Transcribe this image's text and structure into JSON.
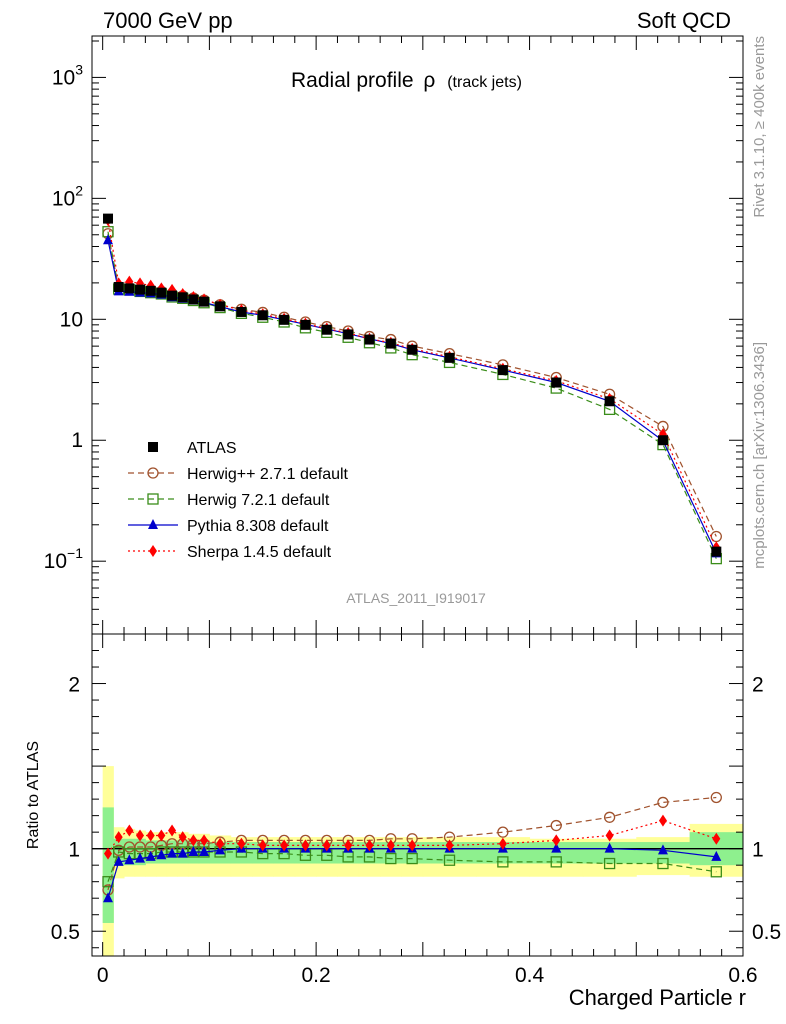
{
  "header": {
    "left": "7000 GeV pp",
    "right": "Soft QCD"
  },
  "side_labels": {
    "top": "Rivet 3.1.10, ≥ 400k events",
    "bottom": "mcplots.cern.ch [arXiv:1306.3436]"
  },
  "colors": {
    "atlas": "#000000",
    "herwigpp": "#a0522d",
    "herwig7": "#3a8d1a",
    "pythia": "#0000cc",
    "sherpa": "#ff0000",
    "band_inner": "#8ef08e",
    "band_outer": "#ffff99"
  },
  "chart_data": [
    {
      "type": "line",
      "panel": "main",
      "title": "Radial profile",
      "title_symbol": "ρ",
      "title_suffix": "(track jets)",
      "watermark": "ATLAS_2011_I919017",
      "yscale": "log",
      "xlim": [
        -0.01,
        0.6
      ],
      "ylim": [
        0.025,
        2200
      ],
      "yticks": [
        {
          "value": 1000,
          "base": "10",
          "exp": "3"
        },
        {
          "value": 100,
          "base": "10",
          "exp": "2"
        },
        {
          "value": 10,
          "base": "10",
          "exp": ""
        },
        {
          "value": 1,
          "base": "1",
          "exp": ""
        },
        {
          "value": 0.1,
          "base": "10",
          "exp": "−1"
        }
      ],
      "x": [
        0.005,
        0.015,
        0.025,
        0.035,
        0.045,
        0.055,
        0.065,
        0.075,
        0.085,
        0.095,
        0.11,
        0.13,
        0.15,
        0.17,
        0.19,
        0.21,
        0.23,
        0.25,
        0.27,
        0.29,
        0.325,
        0.375,
        0.425,
        0.475,
        0.525,
        0.575
      ],
      "series": [
        {
          "name": "ATLAS",
          "key": "atlas",
          "marker": "square-filled",
          "line": "none",
          "values": [
            68,
            18.5,
            18.0,
            17.6,
            17.2,
            16.6,
            15.7,
            15.2,
            14.6,
            14.0,
            12.8,
            11.5,
            10.8,
            9.9,
            9.0,
            8.2,
            7.5,
            6.8,
            6.3,
            5.6,
            4.8,
            3.8,
            3.0,
            2.1,
            1.0,
            0.12
          ]
        },
        {
          "name": "Herwig++ 2.7.1 default",
          "key": "herwigpp",
          "marker": "circle-open",
          "line": "dashed",
          "values": [
            51,
            18.2,
            18.3,
            17.8,
            17.4,
            17.0,
            16.3,
            15.6,
            15.0,
            14.4,
            13.2,
            12.1,
            11.4,
            10.4,
            9.5,
            8.7,
            8.0,
            7.2,
            6.8,
            6.0,
            5.2,
            4.2,
            3.3,
            2.4,
            1.3,
            0.16
          ]
        },
        {
          "name": "Herwig 7.2.1 default",
          "key": "herwig7",
          "marker": "square-open",
          "line": "dashed",
          "values": [
            53,
            17.8,
            17.5,
            17.0,
            16.6,
            16.2,
            15.3,
            14.9,
            14.3,
            13.7,
            12.5,
            11.2,
            10.4,
            9.5,
            8.5,
            7.8,
            7.1,
            6.4,
            5.8,
            5.1,
            4.4,
            3.5,
            2.7,
            1.8,
            0.92,
            0.105
          ]
        },
        {
          "name": "Pythia 8.308 default",
          "key": "pythia",
          "marker": "triangle",
          "line": "solid",
          "values": [
            45,
            17.0,
            16.9,
            16.6,
            16.4,
            16.0,
            15.2,
            14.8,
            14.3,
            13.8,
            12.7,
            11.5,
            10.8,
            9.9,
            9.1,
            8.3,
            7.6,
            6.9,
            6.3,
            5.6,
            4.8,
            3.8,
            3.0,
            2.1,
            0.99,
            0.116
          ]
        },
        {
          "name": "Sherpa 1.4.5 default",
          "key": "sherpa",
          "marker": "diamond",
          "line": "dotted",
          "values": [
            66,
            19.8,
            20.5,
            19.8,
            19.0,
            18.0,
            17.5,
            16.2,
            15.3,
            14.6,
            13.2,
            11.9,
            11.0,
            10.1,
            9.2,
            8.4,
            7.7,
            6.9,
            6.4,
            5.7,
            4.9,
            3.9,
            3.1,
            2.2,
            1.12,
            0.13
          ]
        }
      ],
      "legend_position": "lower-left"
    },
    {
      "type": "line",
      "panel": "ratio",
      "ylabel": "Ratio to ATLAS",
      "xlabel": "Charged Particle r",
      "xlim": [
        -0.01,
        0.6
      ],
      "ylim": [
        0.35,
        2.3
      ],
      "yticks": [
        {
          "value": 2,
          "label": "2"
        },
        {
          "value": 1,
          "label": "1"
        },
        {
          "value": 0.5,
          "label": "0.5"
        }
      ],
      "xticks": [
        {
          "value": 0,
          "label": "0"
        },
        {
          "value": 0.2,
          "label": "0.2"
        },
        {
          "value": 0.4,
          "label": "0.4"
        },
        {
          "value": 0.6,
          "label": "0.6"
        }
      ],
      "bins": [
        0,
        0.01,
        0.02,
        0.03,
        0.04,
        0.05,
        0.06,
        0.07,
        0.08,
        0.09,
        0.1,
        0.12,
        0.14,
        0.16,
        0.18,
        0.2,
        0.22,
        0.24,
        0.26,
        0.28,
        0.3,
        0.35,
        0.4,
        0.45,
        0.5,
        0.55,
        0.6
      ],
      "band_inner": [
        [
          0.55,
          1.25
        ],
        [
          0.9,
          1.06
        ],
        [
          0.9,
          1.06
        ],
        [
          0.9,
          1.06
        ],
        [
          0.91,
          1.05
        ],
        [
          0.91,
          1.05
        ],
        [
          0.91,
          1.05
        ],
        [
          0.91,
          1.05
        ],
        [
          0.91,
          1.05
        ],
        [
          0.91,
          1.05
        ],
        [
          0.91,
          1.04
        ],
        [
          0.91,
          1.04
        ],
        [
          0.91,
          1.04
        ],
        [
          0.91,
          1.04
        ],
        [
          0.91,
          1.04
        ],
        [
          0.91,
          1.04
        ],
        [
          0.91,
          1.04
        ],
        [
          0.91,
          1.04
        ],
        [
          0.91,
          1.04
        ],
        [
          0.91,
          1.04
        ],
        [
          0.91,
          1.04
        ],
        [
          0.91,
          1.04
        ],
        [
          0.91,
          1.04
        ],
        [
          0.91,
          1.04
        ],
        [
          0.91,
          1.04
        ],
        [
          0.9,
          1.1
        ]
      ],
      "band_outer": [
        [
          0.35,
          1.5
        ],
        [
          0.82,
          1.13
        ],
        [
          0.83,
          1.12
        ],
        [
          0.83,
          1.11
        ],
        [
          0.83,
          1.1
        ],
        [
          0.83,
          1.1
        ],
        [
          0.83,
          1.1
        ],
        [
          0.83,
          1.1
        ],
        [
          0.83,
          1.09
        ],
        [
          0.83,
          1.09
        ],
        [
          0.83,
          1.08
        ],
        [
          0.83,
          1.07
        ],
        [
          0.83,
          1.07
        ],
        [
          0.83,
          1.07
        ],
        [
          0.83,
          1.07
        ],
        [
          0.83,
          1.07
        ],
        [
          0.83,
          1.07
        ],
        [
          0.83,
          1.07
        ],
        [
          0.83,
          1.07
        ],
        [
          0.83,
          1.07
        ],
        [
          0.83,
          1.07
        ],
        [
          0.83,
          1.07
        ],
        [
          0.83,
          1.06
        ],
        [
          0.83,
          1.06
        ],
        [
          0.84,
          1.07
        ],
        [
          0.83,
          1.15
        ]
      ],
      "x": [
        0.005,
        0.015,
        0.025,
        0.035,
        0.045,
        0.055,
        0.065,
        0.075,
        0.085,
        0.095,
        0.11,
        0.13,
        0.15,
        0.17,
        0.19,
        0.21,
        0.23,
        0.25,
        0.27,
        0.29,
        0.325,
        0.375,
        0.425,
        0.475,
        0.525,
        0.575
      ],
      "series": [
        {
          "name": "Herwig++ 2.7.1 default",
          "key": "herwigpp",
          "marker": "circle-open",
          "line": "dashed",
          "values": [
            0.75,
            0.99,
            1.01,
            1.01,
            1.01,
            1.02,
            1.03,
            1.03,
            1.03,
            1.03,
            1.04,
            1.05,
            1.05,
            1.05,
            1.05,
            1.05,
            1.05,
            1.05,
            1.06,
            1.06,
            1.07,
            1.1,
            1.14,
            1.19,
            1.28,
            1.31
          ]
        },
        {
          "name": "Herwig 7.2.1 default",
          "key": "herwig7",
          "marker": "square-open",
          "line": "dashed",
          "values": [
            0.8,
            0.98,
            0.97,
            0.97,
            0.97,
            0.98,
            0.98,
            0.98,
            0.98,
            0.98,
            0.98,
            0.98,
            0.97,
            0.97,
            0.96,
            0.96,
            0.95,
            0.95,
            0.94,
            0.94,
            0.93,
            0.92,
            0.92,
            0.91,
            0.91,
            0.86
          ]
        },
        {
          "name": "Pythia 8.308 default",
          "key": "pythia",
          "marker": "triangle",
          "line": "solid",
          "values": [
            0.7,
            0.92,
            0.93,
            0.94,
            0.95,
            0.96,
            0.97,
            0.97,
            0.98,
            0.98,
            0.99,
            1.0,
            1.0,
            1.0,
            1.0,
            1.0,
            1.0,
            1.0,
            1.0,
            1.0,
            1.0,
            1.0,
            1.0,
            1.0,
            0.99,
            0.95
          ]
        },
        {
          "name": "Sherpa 1.4.5 default",
          "key": "sherpa",
          "marker": "diamond",
          "line": "dotted",
          "values": [
            0.97,
            1.07,
            1.11,
            1.08,
            1.08,
            1.08,
            1.11,
            1.07,
            1.05,
            1.05,
            1.03,
            1.03,
            1.02,
            1.02,
            1.02,
            1.02,
            1.02,
            1.02,
            1.02,
            1.02,
            1.02,
            1.03,
            1.05,
            1.08,
            1.17,
            1.06
          ]
        }
      ]
    }
  ]
}
